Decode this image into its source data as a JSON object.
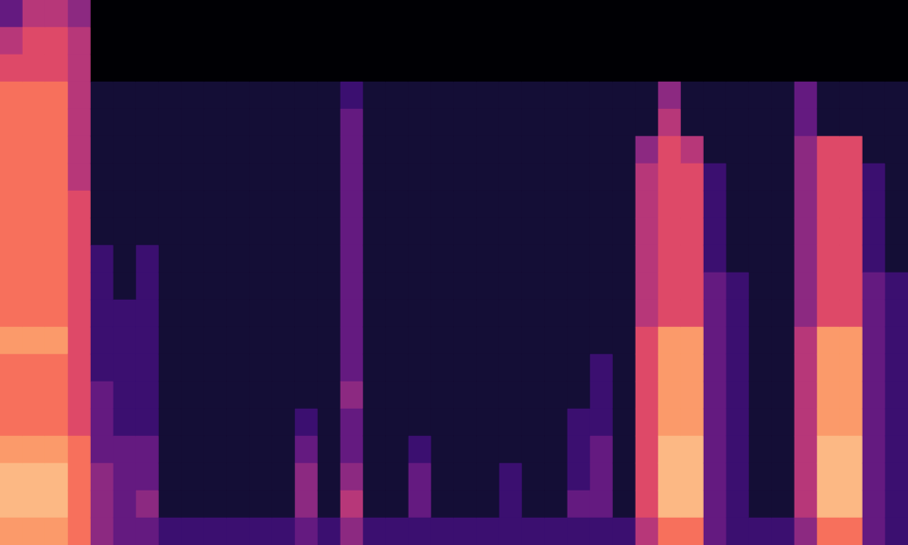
{
  "chart_data": {
    "type": "heatmap",
    "tick_labels": false,
    "value_range": [
      0,
      10
    ],
    "cells": [
      [
        3,
        5,
        6,
        7,
        7,
        7,
        7,
        7,
        7,
        7,
        7,
        7,
        8,
        7,
        7,
        7,
        8,
        9,
        9,
        8
      ],
      [
        5,
        6,
        6,
        7,
        7,
        7,
        7,
        7,
        7,
        7,
        7,
        7,
        8,
        7,
        7,
        7,
        8,
        9,
        9,
        8
      ],
      [
        5,
        6,
        6,
        7,
        7,
        7,
        7,
        7,
        7,
        7,
        7,
        7,
        8,
        7,
        7,
        7,
        8,
        9,
        9,
        8
      ],
      [
        4,
        5,
        5,
        5,
        5,
        5,
        5,
        6,
        6,
        6,
        6,
        6,
        6,
        6,
        6,
        6,
        7,
        7,
        7,
        7
      ],
      [
        0,
        0,
        0,
        1,
        1,
        1,
        1,
        1,
        1,
        2,
        2,
        2,
        2,
        2,
        3,
        3,
        3,
        4,
        4,
        4
      ],
      [
        0,
        0,
        0,
        1,
        1,
        1,
        1,
        1,
        1,
        1,
        1,
        2,
        2,
        2,
        2,
        2,
        3,
        3,
        3,
        3
      ],
      [
        0,
        0,
        0,
        1,
        1,
        1,
        1,
        1,
        1,
        2,
        2,
        2,
        2,
        2,
        2,
        2,
        3,
        3,
        4,
        3
      ],
      [
        0,
        0,
        0,
        1,
        1,
        1,
        1,
        1,
        1,
        1,
        1,
        1,
        1,
        1,
        1,
        1,
        1,
        1,
        1,
        2
      ],
      [
        0,
        0,
        0,
        1,
        1,
        1,
        1,
        1,
        1,
        1,
        1,
        1,
        1,
        1,
        1,
        1,
        1,
        1,
        1,
        2
      ],
      [
        0,
        0,
        0,
        1,
        1,
        1,
        1,
        1,
        1,
        1,
        1,
        1,
        1,
        1,
        1,
        1,
        1,
        1,
        1,
        2
      ],
      [
        0,
        0,
        0,
        1,
        1,
        1,
        1,
        1,
        1,
        1,
        1,
        1,
        1,
        1,
        1,
        1,
        1,
        1,
        1,
        2
      ],
      [
        0,
        0,
        0,
        1,
        1,
        1,
        1,
        1,
        1,
        1,
        1,
        1,
        1,
        1,
        1,
        1,
        1,
        1,
        1,
        2
      ],
      [
        0,
        0,
        0,
        1,
        1,
        1,
        1,
        1,
        1,
        1,
        1,
        1,
        1,
        1,
        1,
        1,
        1,
        1,
        1,
        2
      ],
      [
        0,
        0,
        0,
        1,
        1,
        1,
        1,
        1,
        1,
        1,
        1,
        1,
        1,
        1,
        1,
        2,
        3,
        4,
        4,
        3
      ],
      [
        0,
        0,
        0,
        1,
        1,
        1,
        1,
        1,
        1,
        1,
        1,
        1,
        1,
        1,
        1,
        1,
        1,
        1,
        1,
        2
      ],
      [
        0,
        0,
        0,
        2,
        3,
        3,
        3,
        3,
        3,
        3,
        3,
        3,
        3,
        3,
        4,
        3,
        3,
        4,
        5,
        4
      ],
      [
        0,
        0,
        0,
        1,
        1,
        1,
        1,
        1,
        1,
        1,
        1,
        1,
        1,
        1,
        1,
        1,
        1,
        1,
        1,
        2
      ],
      [
        0,
        0,
        0,
        1,
        1,
        1,
        1,
        1,
        1,
        1,
        1,
        1,
        1,
        1,
        1,
        1,
        1,
        1,
        1,
        2
      ],
      [
        0,
        0,
        0,
        1,
        1,
        1,
        1,
        1,
        1,
        1,
        1,
        1,
        1,
        1,
        1,
        1,
        2,
        3,
        3,
        2
      ],
      [
        0,
        0,
        0,
        1,
        1,
        1,
        1,
        1,
        1,
        1,
        1,
        1,
        1,
        1,
        1,
        1,
        1,
        1,
        1,
        2
      ],
      [
        0,
        0,
        0,
        1,
        1,
        1,
        1,
        1,
        1,
        1,
        1,
        1,
        1,
        1,
        1,
        1,
        1,
        1,
        1,
        2
      ],
      [
        0,
        0,
        0,
        1,
        1,
        1,
        1,
        1,
        1,
        1,
        1,
        1,
        1,
        1,
        1,
        1,
        1,
        1,
        1,
        2
      ],
      [
        0,
        0,
        0,
        1,
        1,
        1,
        1,
        1,
        1,
        1,
        1,
        1,
        1,
        1,
        1,
        1,
        1,
        2,
        2,
        2
      ],
      [
        0,
        0,
        0,
        1,
        1,
        1,
        1,
        1,
        1,
        1,
        1,
        1,
        1,
        1,
        1,
        1,
        1,
        1,
        1,
        2
      ],
      [
        0,
        0,
        0,
        1,
        1,
        1,
        1,
        1,
        1,
        1,
        1,
        1,
        1,
        1,
        1,
        1,
        1,
        1,
        1,
        2
      ],
      [
        0,
        0,
        0,
        1,
        1,
        1,
        1,
        1,
        1,
        1,
        1,
        1,
        1,
        1,
        1,
        2,
        2,
        2,
        3,
        2
      ],
      [
        0,
        0,
        0,
        1,
        1,
        1,
        1,
        1,
        1,
        1,
        1,
        1,
        1,
        2,
        2,
        2,
        3,
        3,
        3,
        2
      ],
      [
        0,
        0,
        0,
        1,
        1,
        1,
        1,
        1,
        1,
        1,
        1,
        1,
        1,
        1,
        1,
        1,
        1,
        1,
        1,
        2
      ],
      [
        0,
        0,
        0,
        1,
        1,
        4,
        5,
        5,
        5,
        5,
        5,
        5,
        6,
        6,
        6,
        6,
        6,
        6,
        6,
        5
      ],
      [
        0,
        0,
        0,
        4,
        5,
        6,
        6,
        6,
        6,
        6,
        6,
        6,
        8,
        8,
        8,
        8,
        9,
        9,
        9,
        7
      ],
      [
        0,
        0,
        0,
        1,
        1,
        5,
        6,
        6,
        6,
        6,
        6,
        6,
        8,
        8,
        8,
        8,
        9,
        9,
        9,
        7
      ],
      [
        0,
        0,
        0,
        1,
        1,
        1,
        2,
        2,
        2,
        2,
        3,
        3,
        3,
        3,
        3,
        3,
        3,
        3,
        3,
        3
      ],
      [
        0,
        0,
        0,
        1,
        1,
        1,
        1,
        1,
        1,
        1,
        2,
        2,
        2,
        2,
        2,
        2,
        2,
        2,
        2,
        2
      ],
      [
        0,
        0,
        0,
        1,
        1,
        1,
        1,
        1,
        1,
        1,
        1,
        1,
        1,
        1,
        1,
        1,
        1,
        1,
        1,
        2
      ],
      [
        0,
        0,
        0,
        1,
        1,
        1,
        1,
        1,
        1,
        1,
        1,
        1,
        1,
        1,
        1,
        1,
        1,
        1,
        1,
        2
      ],
      [
        0,
        0,
        0,
        3,
        3,
        4,
        4,
        4,
        4,
        4,
        4,
        4,
        5,
        5,
        5,
        5,
        5,
        5,
        5,
        4
      ],
      [
        0,
        0,
        0,
        1,
        1,
        6,
        6,
        6,
        6,
        6,
        6,
        6,
        8,
        8,
        8,
        8,
        9,
        9,
        9,
        7
      ],
      [
        0,
        0,
        0,
        1,
        1,
        6,
        6,
        6,
        6,
        6,
        6,
        6,
        8,
        8,
        8,
        8,
        9,
        9,
        9,
        7
      ],
      [
        0,
        0,
        0,
        1,
        1,
        1,
        2,
        2,
        2,
        2,
        3,
        3,
        3,
        3,
        3,
        3,
        3,
        3,
        3,
        3
      ],
      [
        0,
        0,
        0,
        1,
        1,
        1,
        1,
        1,
        1,
        1,
        2,
        2,
        2,
        2,
        2,
        2,
        2,
        2,
        2,
        2
      ]
    ]
  }
}
